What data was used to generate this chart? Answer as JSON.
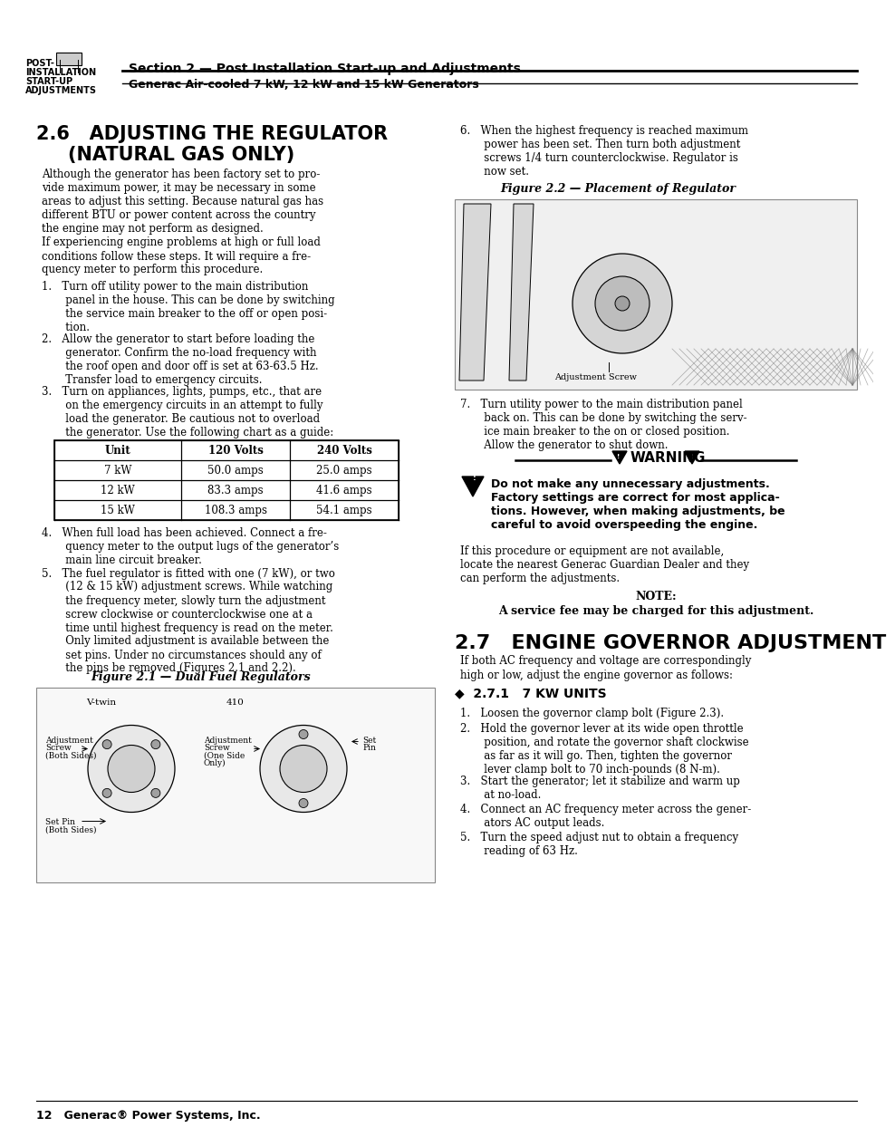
{
  "page_width": 9.54,
  "page_height": 12.35,
  "dpi": 100,
  "bg_color": "#ffffff",
  "header_section_title": "Section 2 — Post Installation Start-up and Adjustments",
  "header_subtitle": "Generac Air-cooled 7 kW, 12 kW and 15 kW Generators",
  "header_left_lines": [
    "POST-",
    "INSTALLATION",
    "START-UP",
    "ADJUSTMENTS"
  ],
  "footer_text": "12   Generac® Power Systems, Inc.",
  "table_headers": [
    "Unit",
    "120 Volts",
    "240 Volts"
  ],
  "table_rows": [
    [
      "7 kW",
      "50.0 amps",
      "25.0 amps"
    ],
    [
      "12 kW",
      "83.3 amps",
      "41.6 amps"
    ],
    [
      "15 kW",
      "108.3 amps",
      "54.1 amps"
    ]
  ],
  "fig21_title": "Figure 2.1 — Dual Fuel Regulators",
  "fig22_title": "Figure 2.2 — Placement of Regulator",
  "warning_text": "WARNING",
  "note_label": "NOTE:",
  "note_body": "A service fee may be charged for this adjustment.",
  "after_warning_text": "If this procedure or equipment are not available,\nlocate the nearest Generac Guardian Dealer and they\ncan perform the adjustments.",
  "section_27_title": "2.7   ENGINE GOVERNOR ADJUSTMENT",
  "section_271_title": "◆  2.7.1   7 KW UNITS"
}
